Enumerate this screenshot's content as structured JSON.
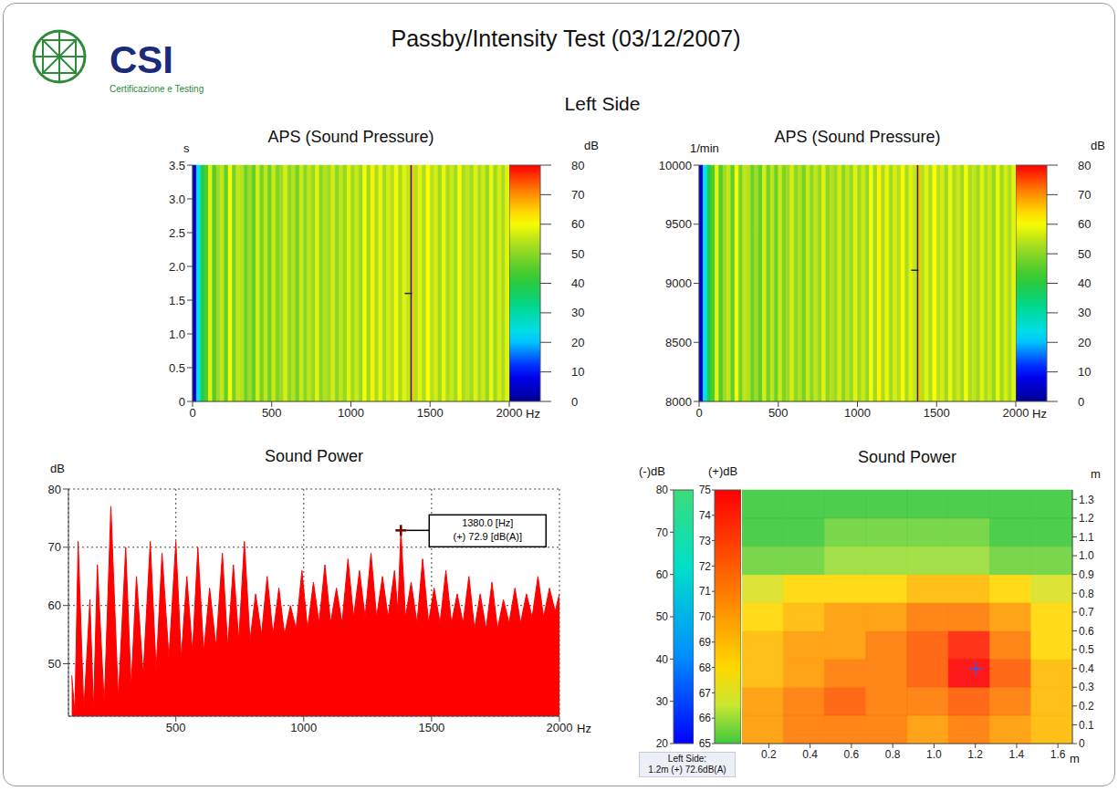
{
  "title": "Passby/Intensity Test (03/12/2007)",
  "logo": {
    "name": "CSI",
    "subtitle": "Certificazione e Testing"
  },
  "subtitle": "Left Side",
  "chart_data": [
    {
      "type": "heatmap",
      "title": "APS (Sound Pressure)",
      "xlabel": "Hz",
      "ylabel": "s",
      "xlim": [
        0,
        2000
      ],
      "xticks": [
        0,
        500,
        1000,
        1500,
        2000
      ],
      "ylim": [
        0,
        3.5
      ],
      "yticks": [
        0,
        0.5,
        {
          "value": 1,
          "label": "1.0"
        },
        1.5,
        {
          "value": 2,
          "label": "2.0"
        },
        2.5,
        {
          "value": 3,
          "label": "3.0"
        },
        3.5
      ],
      "bins": [
        0,
        25,
        50,
        75,
        100,
        125,
        150,
        175,
        200,
        225,
        250,
        275,
        300,
        325,
        350,
        375,
        400,
        425,
        450,
        475,
        500,
        525,
        550,
        575,
        600,
        625,
        650,
        675,
        700,
        725,
        750,
        775,
        800,
        825,
        850,
        875,
        900,
        925,
        950,
        975,
        1000,
        1025,
        1050,
        1075,
        1100,
        1125,
        1150,
        1175,
        1200,
        1225,
        1250,
        1275,
        1300,
        1325,
        1350,
        1375,
        1400,
        1425,
        1450,
        1475,
        1500,
        1525,
        1550,
        1575,
        1600,
        1625,
        1650,
        1675,
        1700,
        1725,
        1750,
        1775,
        1800,
        1825,
        1850,
        1875,
        1900,
        1925,
        1950,
        1975,
        2000
      ],
      "levels": [
        5,
        22,
        38,
        44,
        58,
        45,
        52,
        55,
        46,
        60,
        48,
        55,
        54,
        47,
        52,
        46,
        57,
        48,
        55,
        47,
        56,
        49,
        52,
        57,
        50,
        54,
        48,
        56,
        50,
        55,
        51,
        58,
        50,
        54,
        52,
        57,
        50,
        55,
        51,
        58,
        52,
        56,
        51,
        60,
        52,
        62,
        53,
        59,
        52,
        57,
        54,
        60,
        53,
        58,
        55,
        66,
        54,
        58,
        53,
        61,
        54,
        57,
        52,
        59,
        53,
        56,
        52,
        60,
        53,
        55,
        52,
        58,
        53,
        56,
        51,
        59,
        52,
        57,
        53,
        58
      ],
      "colorbar": {
        "label": "dB",
        "range": [
          0,
          80
        ],
        "ticks": [
          0,
          10,
          20,
          30,
          40,
          50,
          60,
          70,
          80
        ]
      },
      "cursor": {
        "x": 1380,
        "y": 1.6
      }
    },
    {
      "type": "heatmap",
      "title": "APS (Sound Pressure)",
      "xlabel": "Hz",
      "ylabel": "1/min",
      "xlim": [
        0,
        2000
      ],
      "xticks": [
        0,
        500,
        1000,
        1500,
        2000
      ],
      "ylim": [
        8000,
        10000
      ],
      "yticks": [
        8000,
        8500,
        9000,
        9500,
        10000
      ],
      "bins": [
        0,
        25,
        50,
        75,
        100,
        125,
        150,
        175,
        200,
        225,
        250,
        275,
        300,
        325,
        350,
        375,
        400,
        425,
        450,
        475,
        500,
        525,
        550,
        575,
        600,
        625,
        650,
        675,
        700,
        725,
        750,
        775,
        800,
        825,
        850,
        875,
        900,
        925,
        950,
        975,
        1000,
        1025,
        1050,
        1075,
        1100,
        1125,
        1150,
        1175,
        1200,
        1225,
        1250,
        1275,
        1300,
        1325,
        1350,
        1375,
        1400,
        1425,
        1450,
        1475,
        1500,
        1525,
        1550,
        1575,
        1600,
        1625,
        1650,
        1675,
        1700,
        1725,
        1750,
        1775,
        1800,
        1825,
        1850,
        1875,
        1900,
        1925,
        1950,
        1975,
        2000
      ],
      "levels": [
        5,
        22,
        38,
        44,
        58,
        45,
        52,
        55,
        46,
        60,
        48,
        55,
        54,
        47,
        52,
        46,
        57,
        48,
        55,
        47,
        56,
        49,
        52,
        57,
        50,
        54,
        48,
        56,
        50,
        55,
        51,
        58,
        50,
        54,
        52,
        57,
        50,
        55,
        51,
        58,
        52,
        56,
        51,
        60,
        52,
        62,
        53,
        59,
        52,
        57,
        54,
        60,
        53,
        58,
        55,
        66,
        54,
        58,
        53,
        61,
        54,
        57,
        52,
        59,
        53,
        56,
        52,
        60,
        53,
        55,
        52,
        58,
        53,
        56,
        51,
        59,
        52,
        57,
        53,
        58
      ],
      "colorbar": {
        "label": "dB",
        "range": [
          0,
          80
        ],
        "ticks": [
          0,
          10,
          20,
          30,
          40,
          50,
          60,
          70,
          80
        ]
      },
      "cursor": {
        "x": 1380,
        "y": 9110
      }
    },
    {
      "type": "area",
      "title": "Sound Power",
      "xlabel": "Hz",
      "ylabel": "dB",
      "color": "#ff0000",
      "grid": true,
      "xlim": [
        80,
        2000
      ],
      "xticks": [
        500,
        1000,
        1500,
        2000
      ],
      "ylim": [
        41,
        80
      ],
      "yticks": [
        50,
        60,
        70,
        80
      ],
      "x": [
        93,
        105,
        118,
        140,
        164,
        178,
        193,
        220,
        246,
        275,
        304,
        325,
        346,
        372,
        400,
        423,
        446,
        473,
        500,
        521,
        543,
        565,
        586,
        609,
        632,
        657,
        682,
        703,
        725,
        746,
        768,
        790,
        812,
        835,
        857,
        880,
        903,
        925,
        948,
        970,
        993,
        1015,
        1038,
        1060,
        1083,
        1105,
        1128,
        1150,
        1173,
        1195,
        1218,
        1240,
        1263,
        1285,
        1308,
        1330,
        1355,
        1368,
        1380,
        1398,
        1420,
        1443,
        1465,
        1488,
        1510,
        1533,
        1556,
        1578,
        1600,
        1623,
        1646,
        1668,
        1690,
        1713,
        1736,
        1758,
        1781,
        1803,
        1826,
        1848,
        1871,
        1893,
        1916,
        1938,
        1961,
        1983,
        2000
      ],
      "values": [
        48,
        41.5,
        71,
        42,
        61,
        42,
        67,
        43,
        77,
        44,
        70,
        46,
        65,
        48,
        71,
        49,
        69,
        51,
        71,
        51,
        65,
        52,
        70,
        52,
        63,
        53,
        69,
        53,
        67,
        54,
        71,
        54,
        62,
        55,
        65,
        55,
        63,
        55,
        60,
        56,
        66,
        56,
        64,
        57,
        67,
        57,
        63,
        57,
        68,
        58,
        66,
        58,
        69,
        58,
        65,
        58,
        66,
        59,
        72.9,
        58,
        64,
        57,
        68,
        57,
        63,
        57,
        66,
        57,
        62,
        57,
        65,
        56,
        62,
        56,
        64,
        56,
        61,
        57,
        63,
        57,
        62,
        58,
        65,
        58,
        63,
        59,
        62
      ],
      "annotation": {
        "x": 1380,
        "y": 72.9,
        "lines": [
          "1380.0 [Hz]",
          "(+) 72.9 [dB(A)]"
        ]
      }
    },
    {
      "type": "heatmap",
      "title": "Sound Power",
      "xlabel": "m",
      "ylabel": "m",
      "xlim": [
        0.07,
        1.67
      ],
      "xticks": [
        0.2,
        0.4,
        0.6,
        0.8,
        {
          "value": 1,
          "label": "1.0"
        },
        1.2,
        1.4,
        1.6
      ],
      "ylim": [
        0,
        1.35
      ],
      "yticks": [
        0,
        0.1,
        0.2,
        0.3,
        0.4,
        0.5,
        0.6,
        0.7,
        0.8,
        0.9,
        {
          "value": 1,
          "label": "1.0"
        },
        1.1,
        1.2,
        1.3
      ],
      "x_edges": [
        0.07,
        0.27,
        0.47,
        0.67,
        0.87,
        1.07,
        1.27,
        1.47,
        1.67
      ],
      "y_edges": [
        0,
        0.15,
        0.3,
        0.45,
        0.6,
        0.75,
        0.9,
        1.05,
        1.2,
        1.35
      ],
      "cells": [
        [
          70,
          71,
          71,
          71,
          70,
          71,
          70,
          69
        ],
        [
          70,
          71,
          72,
          71,
          71,
          72,
          71,
          69
        ],
        [
          69,
          70,
          71,
          71,
          72,
          75,
          72,
          69
        ],
        [
          69,
          70,
          70,
          71,
          72,
          74,
          71,
          68
        ],
        [
          68,
          69,
          70,
          70,
          71,
          71,
          70,
          68
        ],
        [
          67,
          68,
          68,
          68,
          69,
          69,
          68,
          67
        ],
        [
          65.5,
          65.5,
          66,
          66,
          66,
          66,
          65.5,
          65.5
        ],
        [
          65,
          65,
          65.5,
          65.5,
          65.5,
          65.5,
          65,
          65
        ],
        [
          65,
          65,
          65,
          65,
          65,
          65,
          65,
          65
        ]
      ],
      "colorbars": [
        {
          "label": "(-)dB",
          "range": [
            20,
            80
          ],
          "ticks": [
            20,
            30,
            40,
            50,
            60,
            70,
            80
          ]
        },
        {
          "label": "(+)dB",
          "range": [
            65,
            75
          ],
          "ticks": [
            65,
            66,
            67,
            68,
            69,
            70,
            71,
            72,
            73,
            74,
            75
          ]
        }
      ],
      "cursor": {
        "x": 1.2,
        "y": 0.4
      },
      "readout": [
        "Left Side:",
        "1.2m (+) 72.6dB(A)"
      ]
    }
  ]
}
